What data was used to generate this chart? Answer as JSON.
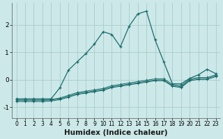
{
  "xlabel": "Humidex (Indice chaleur)",
  "ylabel": "",
  "bg_color": "#cce8e8",
  "grid_color": "#aacccc",
  "line_color": "#1a6b6b",
  "xlim": [
    -0.5,
    23.5
  ],
  "ylim": [
    -1.4,
    2.8
  ],
  "x": [
    0,
    1,
    2,
    3,
    4,
    5,
    6,
    7,
    8,
    9,
    10,
    11,
    12,
    13,
    14,
    15,
    16,
    17,
    18,
    19,
    20,
    21,
    22,
    23
  ],
  "y_main": [
    -0.7,
    -0.7,
    -0.7,
    -0.7,
    -0.7,
    -0.3,
    0.35,
    0.65,
    0.95,
    1.3,
    1.75,
    1.65,
    1.2,
    1.95,
    2.4,
    2.5,
    1.45,
    0.65,
    -0.15,
    -0.15,
    0.05,
    0.18,
    0.38,
    0.22
  ],
  "y_lower1": [
    -0.72,
    -0.72,
    -0.72,
    -0.72,
    -0.72,
    -0.67,
    -0.57,
    -0.47,
    -0.42,
    -0.37,
    -0.32,
    -0.22,
    -0.17,
    -0.12,
    -0.07,
    -0.02,
    0.03,
    0.03,
    -0.17,
    -0.22,
    0.03,
    0.08,
    0.08,
    0.18
  ],
  "y_lower2": [
    -0.76,
    -0.76,
    -0.76,
    -0.76,
    -0.74,
    -0.7,
    -0.61,
    -0.51,
    -0.46,
    -0.41,
    -0.36,
    -0.26,
    -0.21,
    -0.16,
    -0.11,
    -0.06,
    -0.01,
    -0.01,
    -0.21,
    -0.26,
    -0.01,
    0.04,
    0.04,
    0.14
  ],
  "y_lower3": [
    -0.8,
    -0.8,
    -0.8,
    -0.8,
    -0.78,
    -0.73,
    -0.64,
    -0.54,
    -0.49,
    -0.44,
    -0.39,
    -0.29,
    -0.24,
    -0.19,
    -0.14,
    -0.09,
    -0.04,
    -0.04,
    -0.24,
    -0.29,
    -0.04,
    0.01,
    0.01,
    0.11
  ],
  "yticks": [
    -1,
    0,
    1,
    2
  ],
  "xtick_fontsize": 5.5,
  "ytick_fontsize": 6.5,
  "xlabel_fontsize": 7.5
}
